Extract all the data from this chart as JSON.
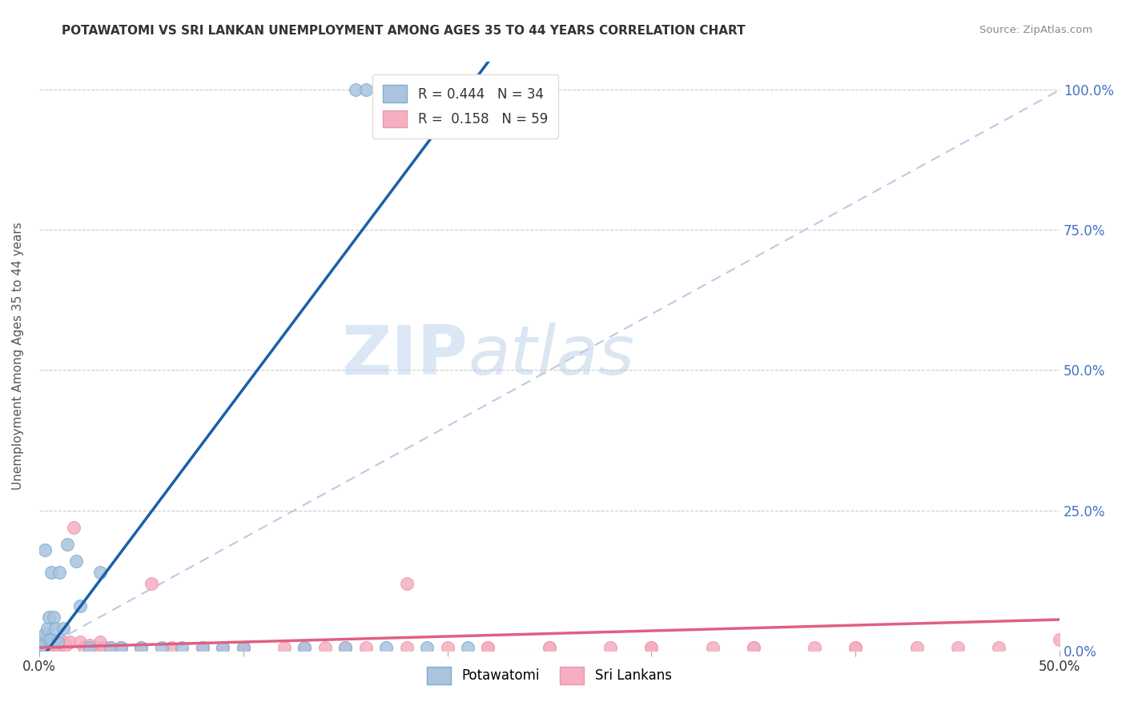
{
  "title": "POTAWATOMI VS SRI LANKAN UNEMPLOYMENT AMONG AGES 35 TO 44 YEARS CORRELATION CHART",
  "source": "Source: ZipAtlas.com",
  "ylabel": "Unemployment Among Ages 35 to 44 years",
  "xlim": [
    0.0,
    0.5
  ],
  "ylim": [
    0.0,
    1.05
  ],
  "xticks": [
    0.0,
    0.1,
    0.2,
    0.3,
    0.4,
    0.5
  ],
  "xtick_labels": [
    "0.0%",
    "",
    "",
    "",
    "",
    "50.0%"
  ],
  "yticks": [
    0.0,
    0.25,
    0.5,
    0.75,
    1.0
  ],
  "ytick_labels": [
    "0.0%",
    "25.0%",
    "50.0%",
    "75.0%",
    "100.0%"
  ],
  "bg_color": "#ffffff",
  "grid_color": "#cccccc",
  "watermark_zip": "ZIP",
  "watermark_atlas": "atlas",
  "legend_R1": "R = 0.444",
  "legend_N1": "N = 34",
  "legend_R2": "R =  0.158",
  "legend_N2": "N = 59",
  "potawatomi_color": "#aac4df",
  "srilankans_color": "#f5afc0",
  "blue_line_color": "#1a5fa8",
  "pink_line_color": "#e06080",
  "dashed_line_color": "#b8cce4",
  "blue_line_x0": 0.0,
  "blue_line_y0": -0.02,
  "blue_line_x1": 0.22,
  "blue_line_y1": 1.05,
  "pink_line_x0": 0.0,
  "pink_line_y0": 0.005,
  "pink_line_x1": 0.5,
  "pink_line_y1": 0.055,
  "potawatomi_x": [
    0.001,
    0.002,
    0.003,
    0.003,
    0.004,
    0.005,
    0.005,
    0.006,
    0.006,
    0.007,
    0.008,
    0.009,
    0.01,
    0.012,
    0.014,
    0.018,
    0.02,
    0.025,
    0.03,
    0.035,
    0.04,
    0.05,
    0.06,
    0.07,
    0.08,
    0.09,
    0.1,
    0.13,
    0.15,
    0.17,
    0.19,
    0.21,
    0.155,
    0.16
  ],
  "potawatomi_y": [
    0.02,
    0.01,
    0.03,
    0.18,
    0.04,
    0.02,
    0.06,
    0.02,
    0.14,
    0.06,
    0.04,
    0.015,
    0.14,
    0.04,
    0.19,
    0.16,
    0.08,
    0.005,
    0.14,
    0.005,
    0.005,
    0.005,
    0.005,
    0.005,
    0.005,
    0.005,
    0.005,
    0.005,
    0.005,
    0.005,
    0.005,
    0.005,
    1.0,
    1.0
  ],
  "srilankans_x": [
    0.001,
    0.002,
    0.002,
    0.003,
    0.003,
    0.004,
    0.004,
    0.005,
    0.005,
    0.006,
    0.007,
    0.008,
    0.009,
    0.01,
    0.011,
    0.012,
    0.013,
    0.015,
    0.017,
    0.02,
    0.022,
    0.025,
    0.028,
    0.03,
    0.032,
    0.035,
    0.04,
    0.05,
    0.055,
    0.065,
    0.08,
    0.09,
    0.1,
    0.12,
    0.13,
    0.14,
    0.16,
    0.18,
    0.2,
    0.22,
    0.25,
    0.28,
    0.3,
    0.33,
    0.35,
    0.38,
    0.4,
    0.43,
    0.45,
    0.47,
    0.22,
    0.3,
    0.35,
    0.4,
    0.18,
    0.25,
    0.1,
    0.15,
    0.5
  ],
  "srilankans_y": [
    0.005,
    0.008,
    0.003,
    0.004,
    0.007,
    0.006,
    0.005,
    0.01,
    0.008,
    0.015,
    0.006,
    0.01,
    0.005,
    0.008,
    0.012,
    0.015,
    0.01,
    0.015,
    0.22,
    0.015,
    0.005,
    0.01,
    0.005,
    0.015,
    0.005,
    0.005,
    0.005,
    0.005,
    0.12,
    0.005,
    0.005,
    0.005,
    0.005,
    0.005,
    0.005,
    0.005,
    0.005,
    0.12,
    0.005,
    0.005,
    0.005,
    0.005,
    0.005,
    0.005,
    0.005,
    0.005,
    0.005,
    0.005,
    0.005,
    0.005,
    0.005,
    0.005,
    0.005,
    0.005,
    0.005,
    0.005,
    0.005,
    0.005,
    0.02
  ]
}
